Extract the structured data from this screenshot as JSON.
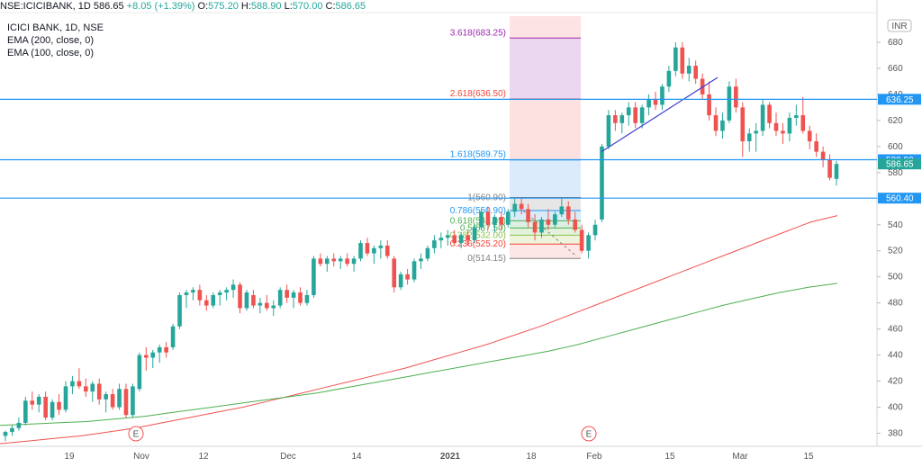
{
  "header": {
    "symbol": "NSE:ICICIBANK, 1D",
    "last": "586.65",
    "change": "+8.05 (+1.39%)",
    "o_label": "O:",
    "o": "575.20",
    "h_label": "H:",
    "h": "588.90",
    "l_label": "L:",
    "l": "570.00",
    "c_label": "C:",
    "c": "586.65"
  },
  "legend": {
    "title": "ICICI BANK, 1D, NSE",
    "ema200": "EMA (200, close, 0)",
    "ema100": "EMA (100, close, 0)"
  },
  "colors": {
    "up": "#26a69a",
    "down": "#ef5350",
    "level_line": "#2196f3",
    "ema100": "#ef5350",
    "ema200": "#4caf50",
    "trendline": "#3f3fd4"
  },
  "chart_data": {
    "type": "candlestick",
    "currency": "INR",
    "ylim": [
      370,
      700
    ],
    "y_ticks": [
      380,
      400,
      420,
      440,
      460,
      480,
      500,
      520,
      540,
      560,
      580,
      600,
      620,
      640,
      660,
      680
    ],
    "x_tick_labels": [
      "19",
      "Nov",
      "12",
      "Dec",
      "14",
      "2021",
      "18",
      "Feb",
      "15",
      "Mar",
      "15"
    ],
    "horizontal_levels": [
      {
        "label": "636.25",
        "value": 636.25
      },
      {
        "label": "589.90",
        "value": 589.9
      },
      {
        "label": "560.40",
        "value": 560.4
      }
    ],
    "last_price": {
      "label": "586.65",
      "value": 586.65
    },
    "fib_extension_labels": [
      {
        "label": "3.618(683.25)",
        "value": 683.25
      },
      {
        "label": "2.618(636.50)",
        "value": 636.5
      },
      {
        "label": "1.618(589.75)",
        "value": 589.75
      }
    ],
    "fib_retracement_labels": [
      {
        "label": "1(560.90)",
        "value": 560.9
      },
      {
        "label": "0.786(550.90)",
        "value": 550.9
      },
      {
        "label": "0.618(543.05)",
        "value": 543.05
      },
      {
        "label": "0.5(537.50)",
        "value": 537.5
      },
      {
        "label": "0.382(532.00)",
        "value": 532.0
      },
      {
        "label": "0.236(525.20)",
        "value": 525.2
      },
      {
        "label": "0(514.15)",
        "value": 514.15
      }
    ],
    "event_markers": [
      "E",
      "E"
    ],
    "candles": [
      {
        "o": 378,
        "h": 382,
        "l": 374,
        "c": 381
      },
      {
        "o": 381,
        "h": 386,
        "l": 378,
        "c": 384
      },
      {
        "o": 384,
        "h": 392,
        "l": 382,
        "c": 388
      },
      {
        "o": 388,
        "h": 408,
        "l": 386,
        "c": 405
      },
      {
        "o": 405,
        "h": 412,
        "l": 398,
        "c": 402
      },
      {
        "o": 402,
        "h": 410,
        "l": 396,
        "c": 408
      },
      {
        "o": 408,
        "h": 412,
        "l": 390,
        "c": 392
      },
      {
        "o": 392,
        "h": 406,
        "l": 390,
        "c": 404
      },
      {
        "o": 404,
        "h": 410,
        "l": 394,
        "c": 398
      },
      {
        "o": 398,
        "h": 420,
        "l": 396,
        "c": 416
      },
      {
        "o": 416,
        "h": 424,
        "l": 410,
        "c": 420
      },
      {
        "o": 420,
        "h": 430,
        "l": 414,
        "c": 416
      },
      {
        "o": 416,
        "h": 422,
        "l": 408,
        "c": 412
      },
      {
        "o": 412,
        "h": 420,
        "l": 404,
        "c": 418
      },
      {
        "o": 418,
        "h": 422,
        "l": 402,
        "c": 406
      },
      {
        "o": 406,
        "h": 412,
        "l": 396,
        "c": 410
      },
      {
        "o": 410,
        "h": 414,
        "l": 398,
        "c": 400
      },
      {
        "o": 400,
        "h": 418,
        "l": 398,
        "c": 414
      },
      {
        "o": 414,
        "h": 418,
        "l": 392,
        "c": 394
      },
      {
        "o": 394,
        "h": 418,
        "l": 392,
        "c": 416
      },
      {
        "o": 414,
        "h": 442,
        "l": 412,
        "c": 440
      },
      {
        "o": 440,
        "h": 446,
        "l": 428,
        "c": 438
      },
      {
        "o": 438,
        "h": 444,
        "l": 430,
        "c": 442
      },
      {
        "o": 442,
        "h": 448,
        "l": 434,
        "c": 446
      },
      {
        "o": 446,
        "h": 450,
        "l": 438,
        "c": 442
      },
      {
        "o": 446,
        "h": 464,
        "l": 444,
        "c": 462
      },
      {
        "o": 462,
        "h": 488,
        "l": 460,
        "c": 486
      },
      {
        "o": 486,
        "h": 490,
        "l": 476,
        "c": 488
      },
      {
        "o": 488,
        "h": 492,
        "l": 482,
        "c": 490
      },
      {
        "o": 490,
        "h": 494,
        "l": 478,
        "c": 482
      },
      {
        "o": 482,
        "h": 486,
        "l": 474,
        "c": 478
      },
      {
        "o": 478,
        "h": 488,
        "l": 476,
        "c": 486
      },
      {
        "o": 486,
        "h": 490,
        "l": 478,
        "c": 488
      },
      {
        "o": 488,
        "h": 492,
        "l": 482,
        "c": 490
      },
      {
        "o": 490,
        "h": 498,
        "l": 484,
        "c": 494
      },
      {
        "o": 494,
        "h": 496,
        "l": 472,
        "c": 476
      },
      {
        "o": 476,
        "h": 490,
        "l": 474,
        "c": 488
      },
      {
        "o": 486,
        "h": 490,
        "l": 476,
        "c": 478
      },
      {
        "o": 478,
        "h": 484,
        "l": 472,
        "c": 480
      },
      {
        "o": 480,
        "h": 486,
        "l": 474,
        "c": 476
      },
      {
        "o": 476,
        "h": 482,
        "l": 470,
        "c": 478
      },
      {
        "o": 478,
        "h": 492,
        "l": 476,
        "c": 490
      },
      {
        "o": 490,
        "h": 494,
        "l": 480,
        "c": 484
      },
      {
        "o": 484,
        "h": 490,
        "l": 476,
        "c": 488
      },
      {
        "o": 488,
        "h": 492,
        "l": 478,
        "c": 480
      },
      {
        "o": 480,
        "h": 490,
        "l": 478,
        "c": 486
      },
      {
        "o": 486,
        "h": 516,
        "l": 484,
        "c": 514
      },
      {
        "o": 514,
        "h": 518,
        "l": 508,
        "c": 510
      },
      {
        "o": 510,
        "h": 516,
        "l": 504,
        "c": 514
      },
      {
        "o": 514,
        "h": 518,
        "l": 508,
        "c": 512
      },
      {
        "o": 512,
        "h": 516,
        "l": 506,
        "c": 514
      },
      {
        "o": 514,
        "h": 518,
        "l": 508,
        "c": 510
      },
      {
        "o": 510,
        "h": 516,
        "l": 504,
        "c": 514
      },
      {
        "o": 514,
        "h": 528,
        "l": 512,
        "c": 526
      },
      {
        "o": 526,
        "h": 530,
        "l": 516,
        "c": 518
      },
      {
        "o": 518,
        "h": 524,
        "l": 510,
        "c": 522
      },
      {
        "o": 522,
        "h": 528,
        "l": 514,
        "c": 524
      },
      {
        "o": 524,
        "h": 528,
        "l": 514,
        "c": 516
      },
      {
        "o": 514,
        "h": 516,
        "l": 488,
        "c": 492
      },
      {
        "o": 492,
        "h": 504,
        "l": 490,
        "c": 502
      },
      {
        "o": 502,
        "h": 506,
        "l": 494,
        "c": 498
      },
      {
        "o": 498,
        "h": 514,
        "l": 496,
        "c": 512
      },
      {
        "o": 512,
        "h": 518,
        "l": 506,
        "c": 514
      },
      {
        "o": 514,
        "h": 524,
        "l": 512,
        "c": 522
      },
      {
        "o": 522,
        "h": 532,
        "l": 518,
        "c": 528
      },
      {
        "o": 528,
        "h": 534,
        "l": 522,
        "c": 530
      },
      {
        "o": 530,
        "h": 536,
        "l": 524,
        "c": 532
      },
      {
        "o": 532,
        "h": 536,
        "l": 524,
        "c": 526
      },
      {
        "o": 526,
        "h": 534,
        "l": 522,
        "c": 532
      },
      {
        "o": 532,
        "h": 536,
        "l": 524,
        "c": 528
      },
      {
        "o": 528,
        "h": 540,
        "l": 526,
        "c": 538
      },
      {
        "o": 538,
        "h": 552,
        "l": 536,
        "c": 550
      },
      {
        "o": 550,
        "h": 554,
        "l": 536,
        "c": 540
      },
      {
        "o": 540,
        "h": 548,
        "l": 534,
        "c": 546
      },
      {
        "o": 546,
        "h": 550,
        "l": 536,
        "c": 540
      },
      {
        "o": 540,
        "h": 552,
        "l": 538,
        "c": 550
      },
      {
        "o": 550,
        "h": 560,
        "l": 546,
        "c": 556
      },
      {
        "o": 556,
        "h": 560,
        "l": 548,
        "c": 552
      },
      {
        "o": 552,
        "h": 556,
        "l": 538,
        "c": 542
      },
      {
        "o": 542,
        "h": 548,
        "l": 528,
        "c": 534
      },
      {
        "o": 534,
        "h": 546,
        "l": 530,
        "c": 544
      },
      {
        "o": 544,
        "h": 552,
        "l": 536,
        "c": 540
      },
      {
        "o": 540,
        "h": 550,
        "l": 538,
        "c": 548
      },
      {
        "o": 548,
        "h": 560,
        "l": 546,
        "c": 554
      },
      {
        "o": 554,
        "h": 558,
        "l": 540,
        "c": 544
      },
      {
        "o": 544,
        "h": 550,
        "l": 534,
        "c": 536
      },
      {
        "o": 536,
        "h": 540,
        "l": 518,
        "c": 520
      },
      {
        "o": 520,
        "h": 534,
        "l": 514,
        "c": 532
      },
      {
        "o": 532,
        "h": 544,
        "l": 528,
        "c": 540
      },
      {
        "o": 544,
        "h": 602,
        "l": 542,
        "c": 600
      },
      {
        "o": 600,
        "h": 628,
        "l": 598,
        "c": 624
      },
      {
        "o": 624,
        "h": 628,
        "l": 612,
        "c": 618
      },
      {
        "o": 618,
        "h": 626,
        "l": 610,
        "c": 624
      },
      {
        "o": 624,
        "h": 634,
        "l": 616,
        "c": 630
      },
      {
        "o": 630,
        "h": 634,
        "l": 614,
        "c": 618
      },
      {
        "o": 618,
        "h": 632,
        "l": 614,
        "c": 630
      },
      {
        "o": 630,
        "h": 640,
        "l": 624,
        "c": 636
      },
      {
        "o": 636,
        "h": 642,
        "l": 628,
        "c": 632
      },
      {
        "o": 632,
        "h": 648,
        "l": 628,
        "c": 646
      },
      {
        "o": 646,
        "h": 662,
        "l": 642,
        "c": 658
      },
      {
        "o": 658,
        "h": 680,
        "l": 654,
        "c": 676
      },
      {
        "o": 676,
        "h": 680,
        "l": 652,
        "c": 656
      },
      {
        "o": 656,
        "h": 668,
        "l": 650,
        "c": 662
      },
      {
        "o": 662,
        "h": 666,
        "l": 648,
        "c": 652
      },
      {
        "o": 652,
        "h": 656,
        "l": 636,
        "c": 640
      },
      {
        "o": 640,
        "h": 650,
        "l": 620,
        "c": 624
      },
      {
        "o": 624,
        "h": 630,
        "l": 608,
        "c": 612
      },
      {
        "o": 612,
        "h": 626,
        "l": 606,
        "c": 620
      },
      {
        "o": 620,
        "h": 650,
        "l": 618,
        "c": 646
      },
      {
        "o": 646,
        "h": 652,
        "l": 626,
        "c": 630
      },
      {
        "o": 630,
        "h": 634,
        "l": 592,
        "c": 604
      },
      {
        "o": 604,
        "h": 614,
        "l": 596,
        "c": 610
      },
      {
        "o": 610,
        "h": 618,
        "l": 596,
        "c": 612
      },
      {
        "o": 612,
        "h": 636,
        "l": 608,
        "c": 632
      },
      {
        "o": 632,
        "h": 634,
        "l": 614,
        "c": 618
      },
      {
        "o": 618,
        "h": 626,
        "l": 608,
        "c": 612
      },
      {
        "o": 612,
        "h": 618,
        "l": 602,
        "c": 610
      },
      {
        "o": 610,
        "h": 626,
        "l": 604,
        "c": 622
      },
      {
        "o": 622,
        "h": 632,
        "l": 616,
        "c": 624
      },
      {
        "o": 624,
        "h": 638,
        "l": 610,
        "c": 612
      },
      {
        "o": 612,
        "h": 616,
        "l": 598,
        "c": 604
      },
      {
        "o": 604,
        "h": 610,
        "l": 592,
        "c": 596
      },
      {
        "o": 596,
        "h": 600,
        "l": 584,
        "c": 590
      },
      {
        "o": 590,
        "h": 594,
        "l": 574,
        "c": 576
      },
      {
        "o": 575.2,
        "h": 588.9,
        "l": 570.0,
        "c": 586.65
      }
    ],
    "series": [
      {
        "name": "EMA (100, close, 0)",
        "values": [
          372,
          374,
          376,
          378,
          381,
          384,
          388,
          392,
          396,
          400,
          405,
          410,
          415,
          420,
          425,
          430,
          436,
          442,
          448,
          455,
          462,
          470,
          478,
          486,
          494,
          502,
          510,
          518,
          526,
          534,
          542,
          547
        ]
      },
      {
        "name": "EMA (200, close, 0)",
        "values": [
          386,
          387,
          388,
          389,
          391,
          393,
          396,
          399,
          402,
          405,
          408,
          411,
          415,
          419,
          423,
          427,
          431,
          435,
          439,
          443,
          448,
          454,
          460,
          466,
          472,
          478,
          483,
          488,
          492,
          495
        ]
      }
    ]
  }
}
